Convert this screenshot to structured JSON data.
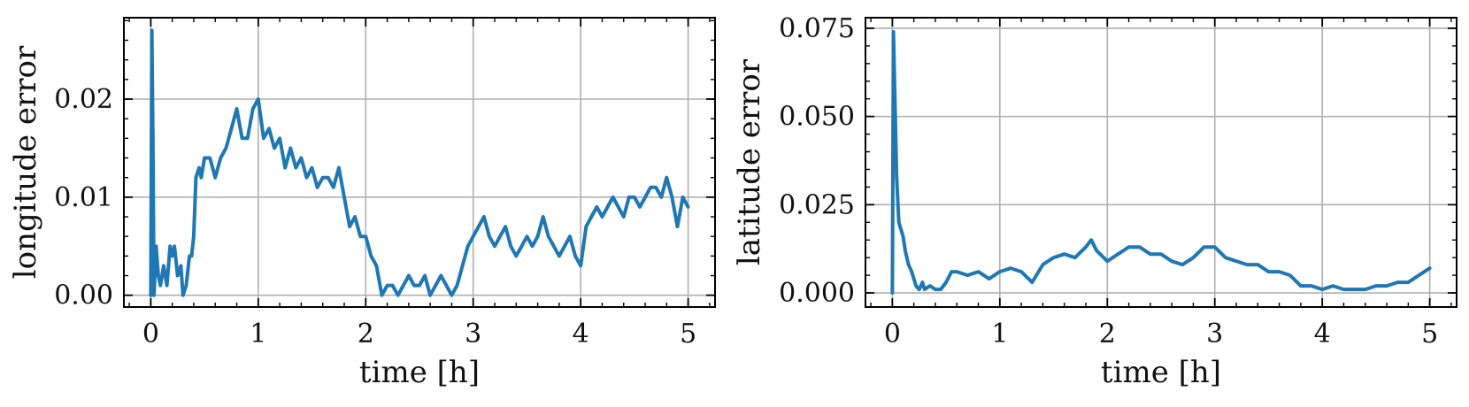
{
  "chart_data": [
    {
      "type": "line",
      "xlabel": "time [h]",
      "ylabel": "longitude error",
      "xlim": [
        -0.25,
        5.25
      ],
      "ylim": [
        -0.0012,
        0.0283
      ],
      "xticks": [
        0,
        1,
        2,
        3,
        4,
        5
      ],
      "xtick_labels": [
        "0",
        "1",
        "2",
        "3",
        "4",
        "5"
      ],
      "yticks": [
        0.0,
        0.01,
        0.02
      ],
      "ytick_labels": [
        "0.00",
        "0.01",
        "0.02"
      ],
      "grid": true,
      "color": "#1f77b4",
      "series": [
        {
          "x": [
            0.0,
            0.01,
            0.02,
            0.03,
            0.05,
            0.07,
            0.09,
            0.12,
            0.15,
            0.18,
            0.2,
            0.22,
            0.25,
            0.28,
            0.3,
            0.33,
            0.36,
            0.38,
            0.4,
            0.42,
            0.45,
            0.47,
            0.5,
            0.55,
            0.6,
            0.65,
            0.7,
            0.75,
            0.8,
            0.85,
            0.9,
            0.95,
            1.0,
            1.05,
            1.1,
            1.15,
            1.2,
            1.25,
            1.3,
            1.35,
            1.4,
            1.45,
            1.5,
            1.55,
            1.6,
            1.65,
            1.7,
            1.75,
            1.8,
            1.85,
            1.9,
            1.95,
            2.0,
            2.05,
            2.1,
            2.15,
            2.2,
            2.25,
            2.3,
            2.35,
            2.4,
            2.45,
            2.5,
            2.55,
            2.6,
            2.65,
            2.7,
            2.75,
            2.8,
            2.85,
            2.9,
            2.95,
            3.0,
            3.05,
            3.1,
            3.15,
            3.2,
            3.25,
            3.3,
            3.35,
            3.4,
            3.45,
            3.5,
            3.55,
            3.6,
            3.65,
            3.7,
            3.75,
            3.8,
            3.85,
            3.9,
            3.95,
            4.0,
            4.05,
            4.1,
            4.15,
            4.2,
            4.25,
            4.3,
            4.35,
            4.4,
            4.45,
            4.5,
            4.55,
            4.6,
            4.65,
            4.7,
            4.75,
            4.8,
            4.85,
            4.9,
            4.95,
            5.0
          ],
          "y": [
            0.0,
            0.027,
            0.016,
            0.0,
            0.005,
            0.002,
            0.001,
            0.003,
            0.001,
            0.005,
            0.004,
            0.005,
            0.002,
            0.003,
            0.0,
            0.001,
            0.004,
            0.004,
            0.006,
            0.012,
            0.013,
            0.012,
            0.014,
            0.014,
            0.012,
            0.014,
            0.015,
            0.017,
            0.019,
            0.016,
            0.016,
            0.019,
            0.02,
            0.016,
            0.017,
            0.015,
            0.016,
            0.013,
            0.015,
            0.013,
            0.014,
            0.012,
            0.013,
            0.011,
            0.012,
            0.012,
            0.011,
            0.013,
            0.01,
            0.007,
            0.008,
            0.006,
            0.006,
            0.004,
            0.003,
            0.0,
            0.001,
            0.001,
            0.0,
            0.001,
            0.002,
            0.001,
            0.001,
            0.002,
            0.0,
            0.001,
            0.002,
            0.001,
            0.0,
            0.001,
            0.003,
            0.005,
            0.006,
            0.007,
            0.008,
            0.006,
            0.005,
            0.006,
            0.007,
            0.005,
            0.004,
            0.005,
            0.006,
            0.005,
            0.006,
            0.008,
            0.006,
            0.005,
            0.004,
            0.005,
            0.006,
            0.004,
            0.003,
            0.007,
            0.008,
            0.009,
            0.008,
            0.009,
            0.01,
            0.009,
            0.008,
            0.01,
            0.01,
            0.009,
            0.01,
            0.011,
            0.011,
            0.01,
            0.012,
            0.01,
            0.007,
            0.01,
            0.009
          ]
        }
      ]
    },
    {
      "type": "line",
      "xlabel": "time [h]",
      "ylabel": "latitude error",
      "xlim": [
        -0.25,
        5.25
      ],
      "ylim": [
        -0.004,
        0.078
      ],
      "xticks": [
        0,
        1,
        2,
        3,
        4,
        5
      ],
      "xtick_labels": [
        "0",
        "1",
        "2",
        "3",
        "4",
        "5"
      ],
      "yticks": [
        0.0,
        0.025,
        0.05,
        0.075
      ],
      "ytick_labels": [
        "0.000",
        "0.025",
        "0.050",
        "0.075"
      ],
      "grid": true,
      "color": "#1f77b4",
      "series": [
        {
          "x": [
            0.0,
            0.01,
            0.02,
            0.04,
            0.06,
            0.08,
            0.1,
            0.12,
            0.15,
            0.18,
            0.2,
            0.22,
            0.25,
            0.28,
            0.3,
            0.35,
            0.4,
            0.45,
            0.5,
            0.55,
            0.6,
            0.7,
            0.8,
            0.9,
            1.0,
            1.1,
            1.2,
            1.3,
            1.4,
            1.5,
            1.6,
            1.7,
            1.8,
            1.85,
            1.9,
            2.0,
            2.1,
            2.2,
            2.3,
            2.4,
            2.5,
            2.6,
            2.7,
            2.8,
            2.9,
            3.0,
            3.1,
            3.2,
            3.3,
            3.4,
            3.5,
            3.6,
            3.7,
            3.8,
            3.9,
            4.0,
            4.1,
            4.2,
            4.3,
            4.4,
            4.5,
            4.6,
            4.7,
            4.8,
            4.9,
            5.0
          ],
          "y": [
            0.0,
            0.074,
            0.06,
            0.033,
            0.02,
            0.018,
            0.016,
            0.012,
            0.008,
            0.006,
            0.004,
            0.002,
            0.001,
            0.003,
            0.001,
            0.002,
            0.001,
            0.001,
            0.003,
            0.006,
            0.006,
            0.005,
            0.006,
            0.004,
            0.006,
            0.007,
            0.006,
            0.003,
            0.008,
            0.01,
            0.011,
            0.01,
            0.013,
            0.015,
            0.012,
            0.009,
            0.011,
            0.013,
            0.013,
            0.011,
            0.011,
            0.009,
            0.008,
            0.01,
            0.013,
            0.013,
            0.01,
            0.009,
            0.008,
            0.008,
            0.006,
            0.006,
            0.005,
            0.002,
            0.002,
            0.001,
            0.002,
            0.001,
            0.001,
            0.001,
            0.002,
            0.002,
            0.003,
            0.003,
            0.005,
            0.007
          ]
        }
      ]
    }
  ]
}
